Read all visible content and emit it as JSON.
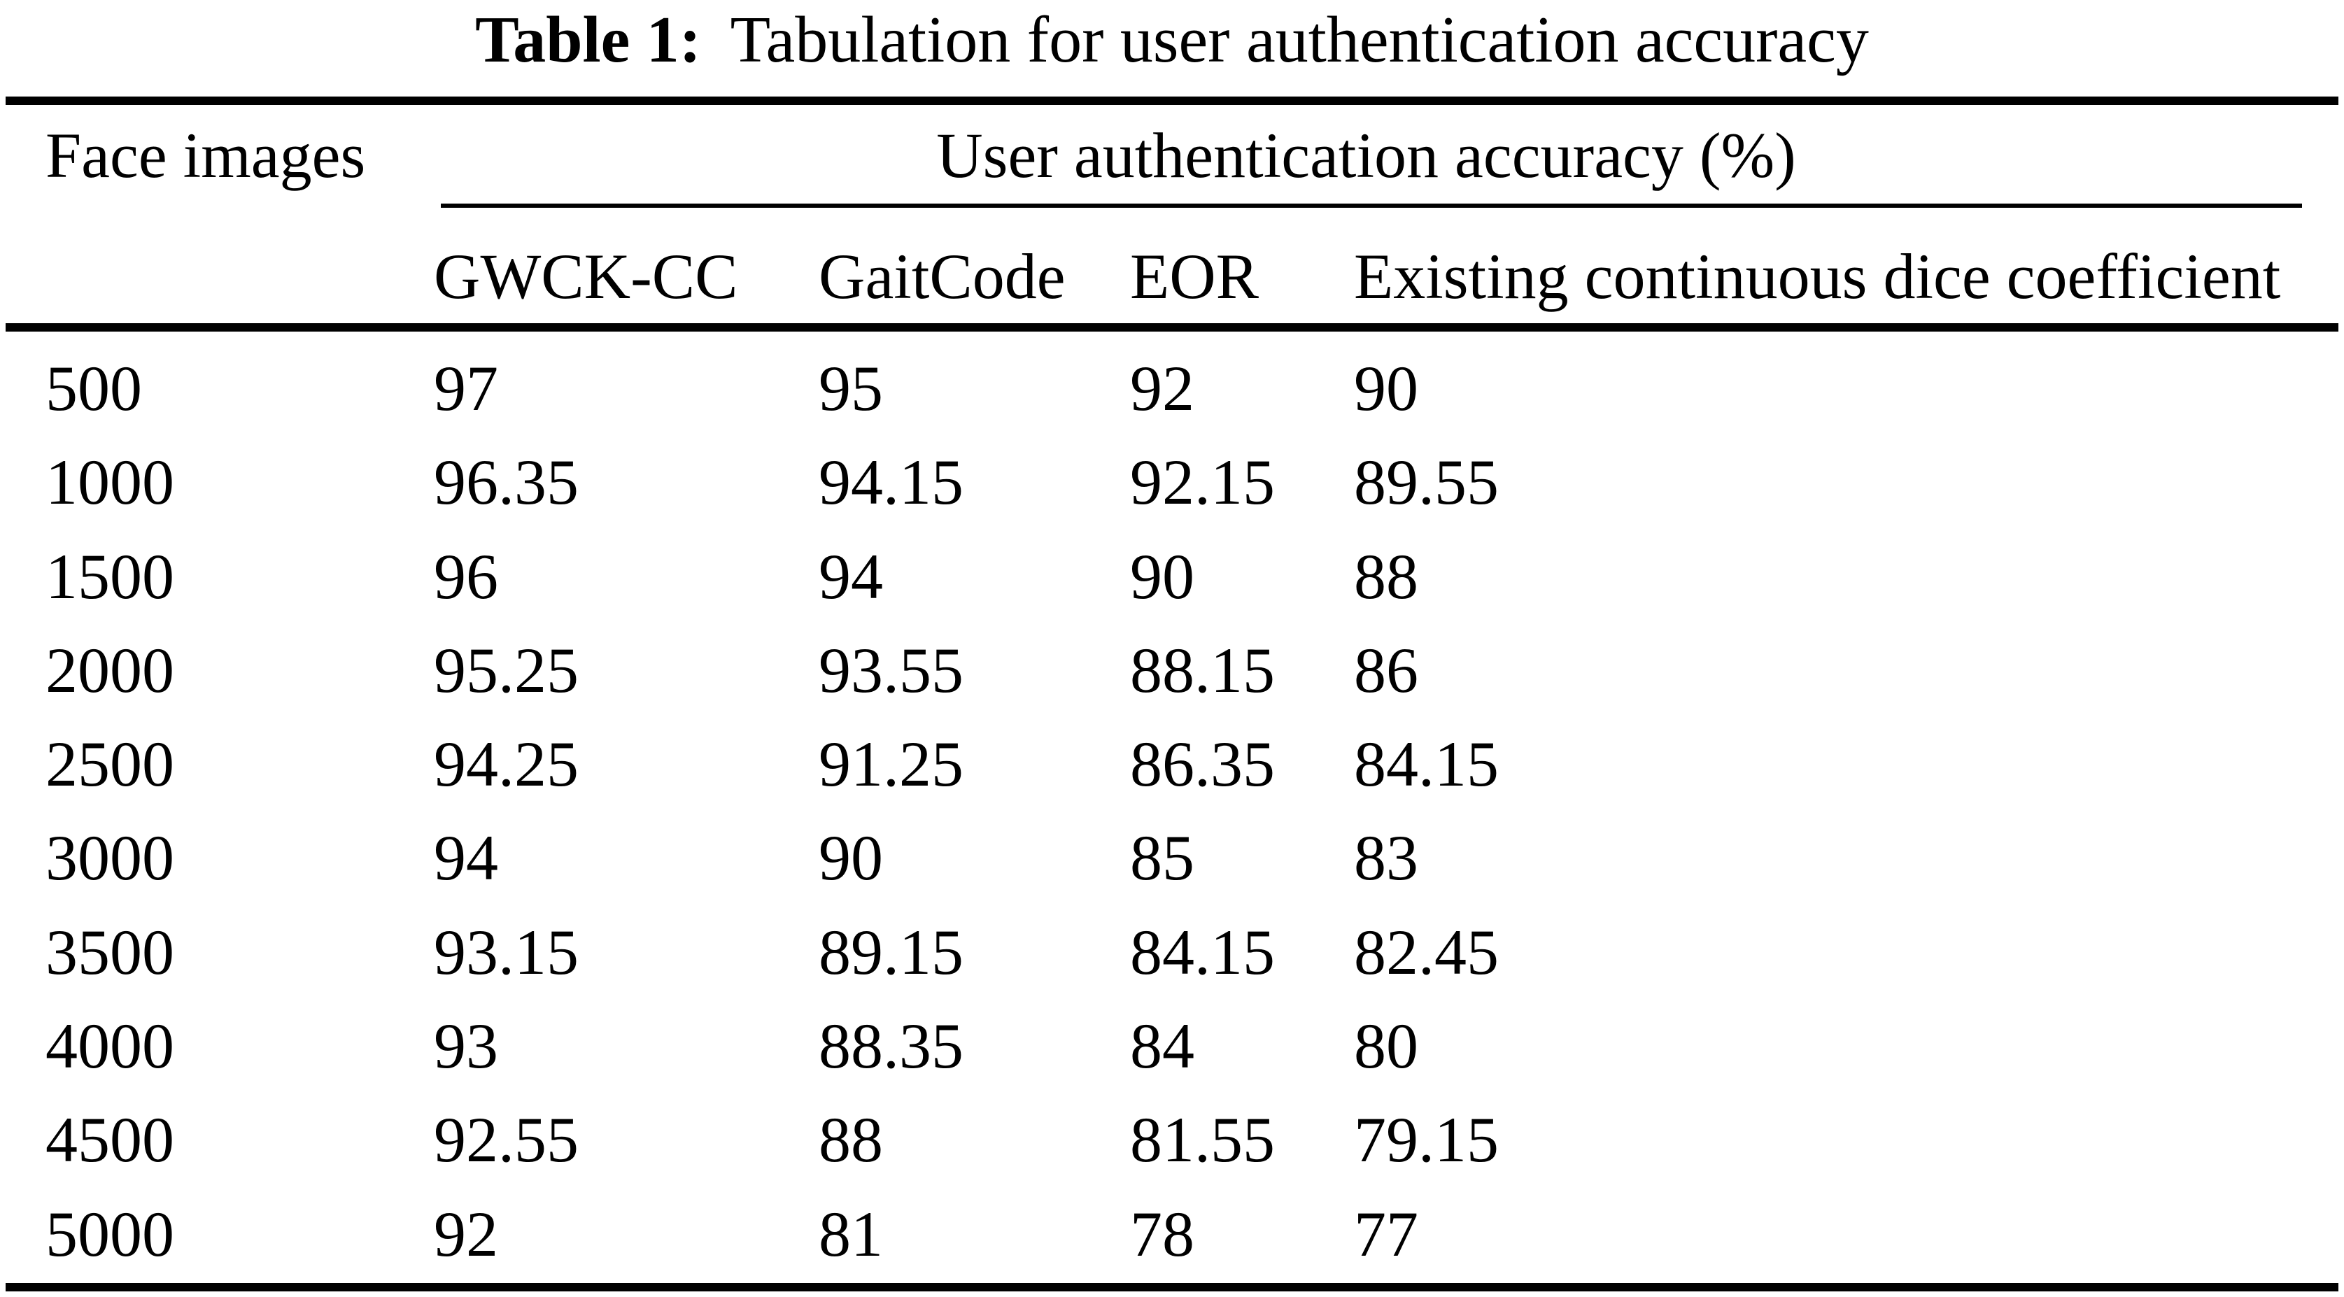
{
  "caption": {
    "label": "Table 1:",
    "text": "Tabulation for user authentication accuracy"
  },
  "table": {
    "row_header": "Face images",
    "group_header": "User authentication accuracy (%)",
    "columns": [
      "GWCK-CC",
      "GaitCode",
      "EOR",
      "Existing continuous dice coefficient"
    ],
    "rows": [
      {
        "face_images": "500",
        "values": [
          "97",
          "95",
          "92",
          "90"
        ]
      },
      {
        "face_images": "1000",
        "values": [
          "96.35",
          "94.15",
          "92.15",
          "89.55"
        ]
      },
      {
        "face_images": "1500",
        "values": [
          "96",
          "94",
          "90",
          "88"
        ]
      },
      {
        "face_images": "2000",
        "values": [
          "95.25",
          "93.55",
          "88.15",
          "86"
        ]
      },
      {
        "face_images": "2500",
        "values": [
          "94.25",
          "91.25",
          "86.35",
          "84.15"
        ]
      },
      {
        "face_images": "3000",
        "values": [
          "94",
          "90",
          "85",
          "83"
        ]
      },
      {
        "face_images": "3500",
        "values": [
          "93.15",
          "89.15",
          "84.15",
          "82.45"
        ]
      },
      {
        "face_images": "4000",
        "values": [
          "93",
          "88.35",
          "84",
          "80"
        ]
      },
      {
        "face_images": "4500",
        "values": [
          "92.55",
          "88",
          "81.55",
          "79.15"
        ]
      },
      {
        "face_images": "5000",
        "values": [
          "92",
          "81",
          "78",
          "77"
        ]
      }
    ],
    "colors": {
      "text": "#000000",
      "background": "#ffffff",
      "rule": "#000000"
    }
  }
}
